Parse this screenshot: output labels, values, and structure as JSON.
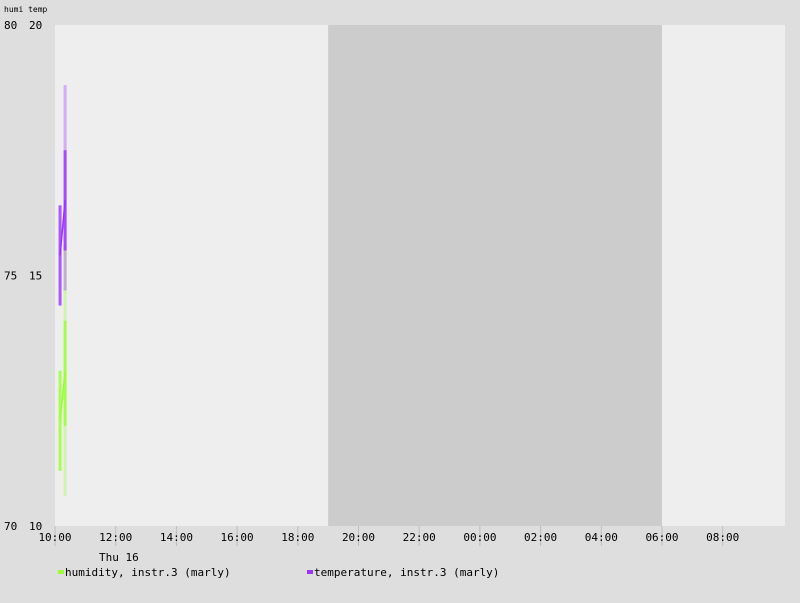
{
  "chart_data": {
    "type": "line",
    "x": [
      "10:00",
      "10:10",
      "10:20"
    ],
    "axis_units_label": "humi temp",
    "y_left_humidity": {
      "ticks": [
        "80",
        "75",
        "70"
      ],
      "ylim": [
        70,
        80
      ]
    },
    "y_right_temperature": {
      "ticks": [
        "20",
        "15",
        "10"
      ],
      "ylim": [
        10,
        20
      ]
    },
    "x_ticks": [
      "10:00",
      "12:00",
      "14:00",
      "16:00",
      "18:00",
      "20:00",
      "22:00",
      "00:00",
      "02:00",
      "04:00",
      "06:00",
      "08:00"
    ],
    "date_label": "Thu 16",
    "night_shading": {
      "from": "19:00",
      "to": "06:00"
    },
    "grid": false,
    "legend_position": "bottom",
    "series": [
      {
        "name": "humidity, instr.3 (marly)",
        "axis": "humi",
        "color": "#99ff33",
        "points": [
          {
            "t": "10:10",
            "value": 72.1,
            "min": 71.1,
            "max": 73.1
          },
          {
            "t": "10:20",
            "value": 73.1,
            "min": 72.0,
            "max": 74.1
          }
        ],
        "outer_range": [
          {
            "t": "10:20",
            "min": 70.6,
            "max": 75.6
          }
        ]
      },
      {
        "name": "temperature, instr.3 (marly)",
        "axis": "temp",
        "color": "#9933ff",
        "points": [
          {
            "t": "10:10",
            "value": 15.4,
            "min": 14.4,
            "max": 16.4
          },
          {
            "t": "10:20",
            "value": 16.5,
            "min": 15.5,
            "max": 17.5
          }
        ],
        "outer_range": [
          {
            "t": "10:20",
            "min": 14.7,
            "max": 18.8
          }
        ]
      }
    ]
  }
}
